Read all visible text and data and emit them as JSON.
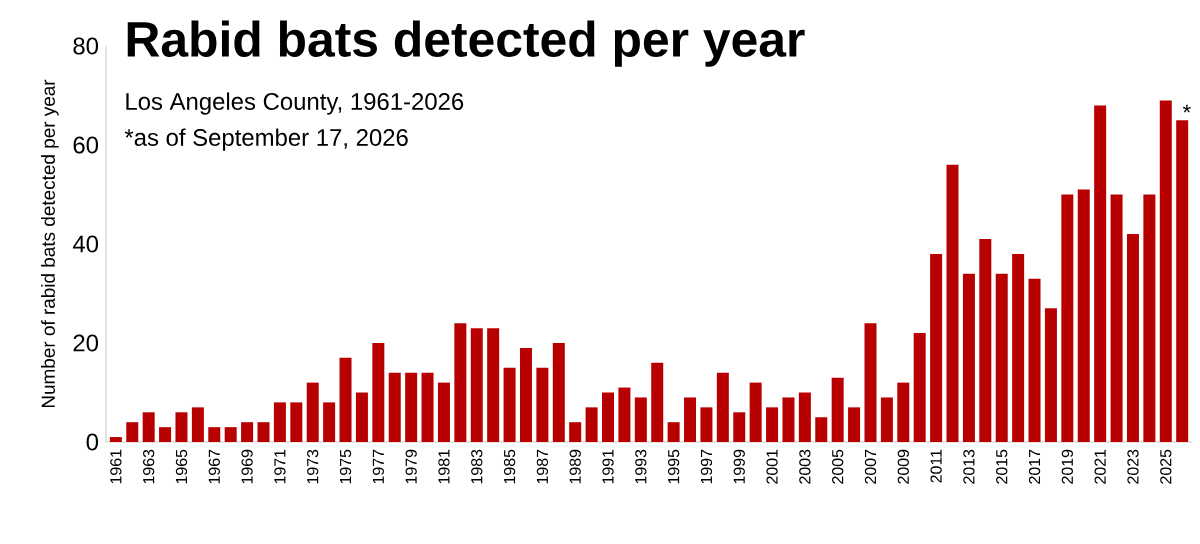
{
  "chart_data": {
    "type": "bar",
    "title": "Rabid bats detected per year",
    "subtitle": "Los Angeles County, 1961-2026",
    "annotations": [
      "*as of September 17, 2026",
      "*"
    ],
    "ylabel": "Number of rabid bats detected per year",
    "categories": [
      "1961",
      null,
      "1963",
      null,
      "1965",
      null,
      "1967",
      null,
      "1969",
      null,
      "1971",
      null,
      "1973",
      null,
      "1975",
      null,
      "1977",
      null,
      "1979",
      null,
      "1981",
      null,
      "1983",
      null,
      "1985",
      null,
      "1987",
      null,
      "1989",
      null,
      "1991",
      null,
      "1993",
      null,
      "1995",
      null,
      "1997",
      null,
      "1999",
      null,
      "2001",
      null,
      "2003",
      null,
      "2005",
      null,
      "2007",
      null,
      "2009",
      null,
      "2011",
      null,
      "2013",
      null,
      "2015",
      null,
      "2017",
      null,
      "2019",
      null,
      "2021",
      null,
      "2023",
      null,
      "2025",
      null
    ],
    "values": [
      1,
      4,
      6,
      3,
      6,
      7,
      3,
      3,
      4,
      4,
      8,
      8,
      12,
      8,
      17,
      10,
      20,
      14,
      14,
      14,
      12,
      24,
      23,
      23,
      15,
      19,
      15,
      20,
      4,
      7,
      10,
      11,
      9,
      16,
      4,
      9,
      7,
      14,
      6,
      12,
      7,
      9,
      10,
      5,
      13,
      7,
      24,
      9,
      12,
      22,
      38,
      56,
      34,
      41,
      34,
      38,
      33,
      27,
      50,
      51,
      68,
      50,
      42,
      50,
      69,
      65
    ],
    "color": "#b80000",
    "ylim": [
      0,
      80
    ],
    "yticks": [
      0,
      20,
      40,
      60,
      80
    ]
  }
}
